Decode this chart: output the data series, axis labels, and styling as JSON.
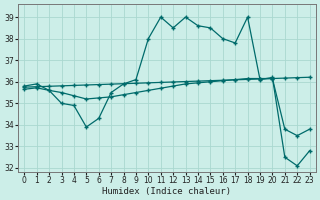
{
  "xlabel": "Humidex (Indice chaleur)",
  "bg_color": "#cceee8",
  "grid_color": "#aad8d0",
  "line_color": "#006b6b",
  "xlim": [
    -0.5,
    23.5
  ],
  "ylim": [
    31.8,
    39.6
  ],
  "yticks": [
    32,
    33,
    34,
    35,
    36,
    37,
    38,
    39
  ],
  "xticks": [
    0,
    1,
    2,
    3,
    4,
    5,
    6,
    7,
    8,
    9,
    10,
    11,
    12,
    13,
    14,
    15,
    16,
    17,
    18,
    19,
    20,
    21,
    22,
    23
  ],
  "curve1_x": [
    0,
    1,
    2,
    3,
    4,
    5,
    6,
    7,
    8,
    9,
    10,
    11,
    12,
    13,
    14,
    15,
    16,
    17,
    18,
    19,
    20,
    21,
    22,
    23
  ],
  "curve1_y": [
    35.8,
    35.9,
    35.6,
    35.0,
    34.9,
    33.9,
    34.3,
    35.5,
    35.9,
    36.1,
    38.0,
    39.0,
    38.5,
    39.0,
    38.6,
    38.5,
    38.0,
    37.8,
    39.0,
    36.1,
    36.2,
    32.5,
    32.1,
    32.8
  ],
  "curve2_x": [
    0,
    1,
    2,
    3,
    4,
    5,
    6,
    7,
    8,
    9,
    10,
    11,
    12,
    13,
    14,
    15,
    16,
    17,
    18,
    19,
    20,
    21,
    22,
    23
  ],
  "curve2_y": [
    35.75,
    35.77,
    35.79,
    35.81,
    35.83,
    35.85,
    35.87,
    35.89,
    35.91,
    35.93,
    35.95,
    35.97,
    35.99,
    36.01,
    36.03,
    36.05,
    36.07,
    36.09,
    36.11,
    36.13,
    36.15,
    36.17,
    36.19,
    36.21
  ],
  "curve3_x": [
    0,
    1,
    2,
    3,
    4,
    5,
    6,
    7,
    8,
    9,
    10,
    11,
    12,
    13,
    14,
    15,
    16,
    17,
    18,
    19,
    20,
    21,
    22,
    23
  ],
  "curve3_y": [
    35.65,
    35.72,
    35.6,
    35.5,
    35.35,
    35.2,
    35.25,
    35.3,
    35.4,
    35.5,
    35.6,
    35.7,
    35.8,
    35.9,
    35.95,
    36.0,
    36.05,
    36.1,
    36.15,
    36.15,
    36.15,
    33.8,
    33.5,
    33.8
  ],
  "markersize": 2.5,
  "linewidth": 0.9
}
